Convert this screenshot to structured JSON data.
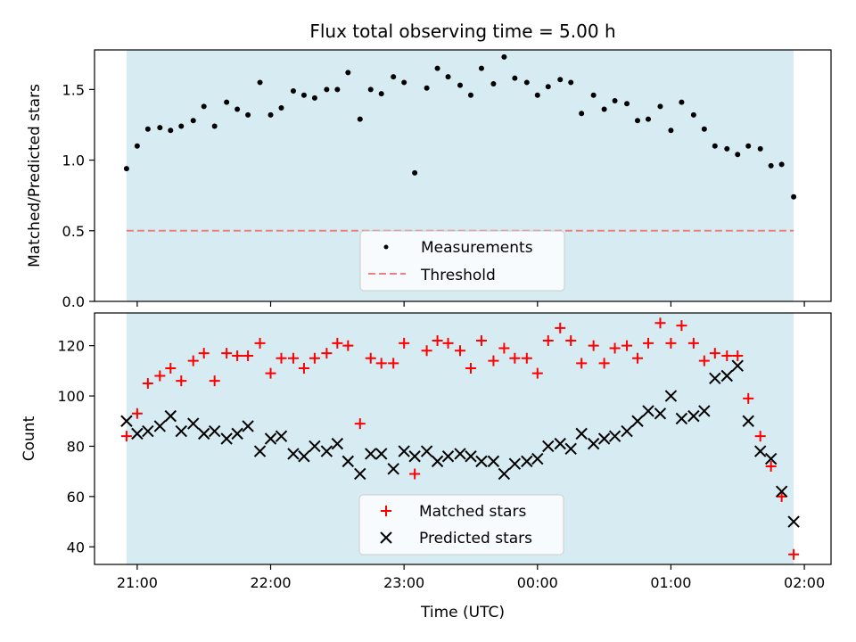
{
  "figure": {
    "title": "Flux total observing time = 5.00 h",
    "xlabel": "Time (UTC)",
    "x_ticks": [
      "21:00",
      "22:00",
      "23:00",
      "00:00",
      "01:00",
      "02:00"
    ]
  },
  "colors": {
    "shade": "#add8e6",
    "measurement": "#000000",
    "threshold": "#f08080",
    "matched": "#ff0000",
    "predicted": "#000000"
  },
  "chart_data": [
    {
      "type": "scatter",
      "x_unit": "hours since 20:00 UTC",
      "xlim": [
        20.68,
        26.2
      ],
      "ylabel": "Matched/Predicted stars",
      "ylim": [
        0,
        1.78
      ],
      "y_ticks": [
        0.0,
        0.5,
        1.0,
        1.5
      ],
      "y_tick_labels": [
        "0.0",
        "0.5",
        "1.0",
        "1.5"
      ],
      "shaded_span": [
        20.92,
        25.92
      ],
      "threshold": {
        "name": "Threshold",
        "value": 0.5
      },
      "legend": {
        "placement": "lower-center",
        "entries": [
          "Measurements",
          "Threshold"
        ]
      },
      "series": [
        {
          "name": "Measurements",
          "x": [
            20.92,
            21.0,
            21.08,
            21.17,
            21.25,
            21.33,
            21.42,
            21.5,
            21.58,
            21.67,
            21.75,
            21.83,
            21.92,
            22.0,
            22.08,
            22.17,
            22.25,
            22.33,
            22.42,
            22.5,
            22.58,
            22.67,
            22.75,
            22.83,
            22.92,
            23.0,
            23.08,
            23.17,
            23.25,
            23.33,
            23.42,
            23.5,
            23.58,
            23.67,
            23.75,
            23.83,
            23.92,
            24.0,
            24.08,
            24.17,
            24.25,
            24.33,
            24.42,
            24.5,
            24.58,
            24.67,
            24.75,
            24.83,
            24.92,
            25.0,
            25.08,
            25.17,
            25.25,
            25.33,
            25.42,
            25.5,
            25.58,
            25.67,
            25.75,
            25.83,
            25.92
          ],
          "y": [
            0.94,
            1.1,
            1.22,
            1.23,
            1.21,
            1.24,
            1.28,
            1.38,
            1.24,
            1.41,
            1.36,
            1.32,
            1.55,
            1.32,
            1.37,
            1.49,
            1.46,
            1.44,
            1.5,
            1.5,
            1.62,
            1.29,
            1.5,
            1.47,
            1.59,
            1.55,
            0.91,
            1.51,
            1.65,
            1.59,
            1.53,
            1.46,
            1.65,
            1.54,
            1.73,
            1.58,
            1.55,
            1.46,
            1.52,
            1.57,
            1.55,
            1.33,
            1.46,
            1.36,
            1.42,
            1.4,
            1.28,
            1.29,
            1.38,
            1.21,
            1.41,
            1.32,
            1.22,
            1.1,
            1.08,
            1.04,
            1.1,
            1.08,
            0.96,
            0.97,
            0.74
          ]
        }
      ]
    },
    {
      "type": "scatter",
      "x_unit": "hours since 20:00 UTC",
      "xlim": [
        20.68,
        26.2
      ],
      "ylabel": "Count",
      "ylim": [
        33,
        133
      ],
      "y_ticks": [
        40,
        60,
        80,
        100,
        120
      ],
      "y_tick_labels": [
        "40",
        "60",
        "80",
        "100",
        "120"
      ],
      "shaded_span": [
        20.92,
        25.92
      ],
      "legend": {
        "placement": "lower-center",
        "entries": [
          "Matched stars",
          "Predicted stars"
        ]
      },
      "series": [
        {
          "name": "Matched stars",
          "marker": "plus",
          "x": [
            20.92,
            21.0,
            21.08,
            21.17,
            21.25,
            21.33,
            21.42,
            21.5,
            21.58,
            21.67,
            21.75,
            21.83,
            21.92,
            22.0,
            22.08,
            22.17,
            22.25,
            22.33,
            22.42,
            22.5,
            22.58,
            22.67,
            22.75,
            22.83,
            22.92,
            23.0,
            23.08,
            23.17,
            23.25,
            23.33,
            23.42,
            23.5,
            23.58,
            23.67,
            23.75,
            23.83,
            23.92,
            24.0,
            24.08,
            24.17,
            24.25,
            24.33,
            24.42,
            24.5,
            24.58,
            24.67,
            24.75,
            24.83,
            24.92,
            25.0,
            25.08,
            25.17,
            25.25,
            25.33,
            25.42,
            25.5,
            25.58,
            25.67,
            25.75,
            25.83,
            25.92
          ],
          "y": [
            84,
            93,
            105,
            108,
            111,
            106,
            114,
            117,
            106,
            117,
            116,
            116,
            121,
            109,
            115,
            115,
            111,
            115,
            117,
            121,
            120,
            89,
            115,
            113,
            113,
            121,
            69,
            118,
            122,
            121,
            118,
            111,
            122,
            114,
            119,
            115,
            115,
            109,
            122,
            127,
            122,
            113,
            120,
            113,
            119,
            120,
            115,
            121,
            129,
            121,
            128,
            121,
            114,
            117,
            116,
            116,
            99,
            84,
            72,
            60,
            37
          ]
        },
        {
          "name": "Predicted stars",
          "marker": "x",
          "x": [
            20.92,
            21.0,
            21.08,
            21.17,
            21.25,
            21.33,
            21.42,
            21.5,
            21.58,
            21.67,
            21.75,
            21.83,
            21.92,
            22.0,
            22.08,
            22.17,
            22.25,
            22.33,
            22.42,
            22.5,
            22.58,
            22.67,
            22.75,
            22.83,
            22.92,
            23.0,
            23.08,
            23.17,
            23.25,
            23.33,
            23.42,
            23.5,
            23.58,
            23.67,
            23.75,
            23.83,
            23.92,
            24.0,
            24.08,
            24.17,
            24.25,
            24.33,
            24.42,
            24.5,
            24.58,
            24.67,
            24.75,
            24.83,
            24.92,
            25.0,
            25.08,
            25.17,
            25.25,
            25.33,
            25.42,
            25.5,
            25.58,
            25.67,
            25.75,
            25.83,
            25.92
          ],
          "y": [
            90,
            85,
            86,
            88,
            92,
            86,
            89,
            85,
            86,
            83,
            85,
            88,
            78,
            83,
            84,
            77,
            76,
            80,
            78,
            81,
            74,
            69,
            77,
            77,
            71,
            78,
            76,
            78,
            74,
            76,
            77,
            76,
            74,
            74,
            69,
            73,
            74,
            75,
            80,
            81,
            79,
            85,
            81,
            83,
            84,
            86,
            90,
            94,
            93,
            100,
            91,
            92,
            94,
            107,
            108,
            112,
            90,
            78,
            75,
            62,
            50
          ]
        }
      ]
    }
  ]
}
